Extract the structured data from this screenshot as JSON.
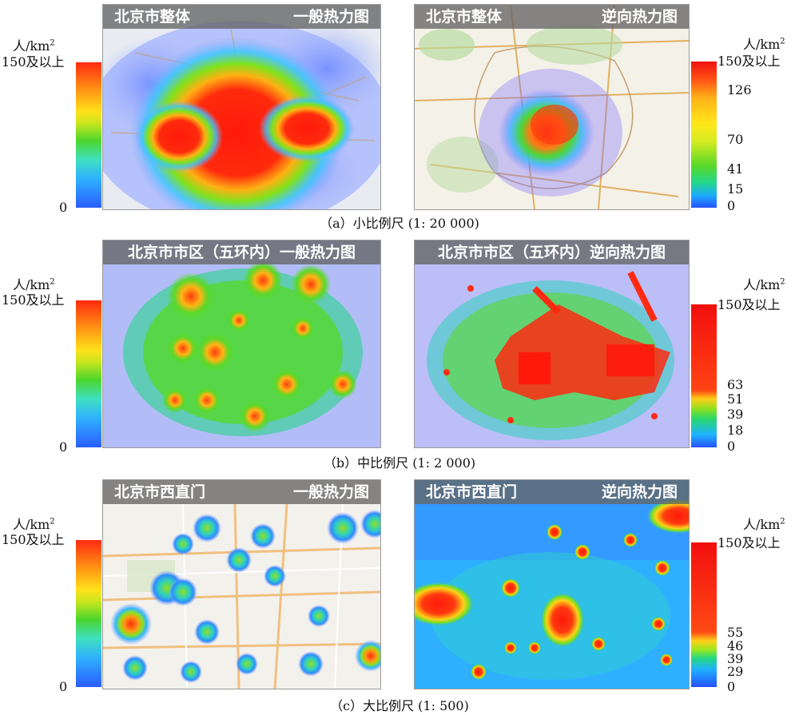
{
  "panels": [
    {
      "id": "a",
      "left": {
        "place": "北京市整体",
        "kind": "一般热力图"
      },
      "right": {
        "place": "北京市整体",
        "kind": "逆向热力图"
      },
      "left_legend": {
        "unit": "人/km",
        "unit_sup": "2",
        "max": "150及以上",
        "min": "0"
      },
      "right_legend": {
        "unit": "人/km",
        "unit_sup": "2",
        "max": "150及以上",
        "ticks": [
          "126",
          "70",
          "41",
          "15",
          "0"
        ]
      },
      "caption": "（a）小比例尺 (1: 20 000)"
    },
    {
      "id": "b",
      "left": {
        "place": "北京市市区（五环内）",
        "kind": "一般热力图"
      },
      "right": {
        "place": "北京市市区（五环内）",
        "kind": "逆向热力图"
      },
      "left_legend": {
        "unit": "人/km",
        "unit_sup": "2",
        "max": "150及以上",
        "min": "0"
      },
      "right_legend": {
        "unit": "人/km",
        "unit_sup": "2",
        "max": "150及以上",
        "ticks": [
          "63",
          "51",
          "39",
          "18",
          "0"
        ]
      },
      "caption": "（b）中比例尺 (1: 2 000)"
    },
    {
      "id": "c",
      "left": {
        "place": "北京市西直门",
        "kind": "一般热力图"
      },
      "right": {
        "place": "北京市西直门",
        "kind": "逆向热力图"
      },
      "left_legend": {
        "unit": "人/km",
        "unit_sup": "2",
        "max": "150及以上",
        "min": "0"
      },
      "right_legend": {
        "unit": "人/km",
        "unit_sup": "2",
        "max": "150及以上",
        "ticks": [
          "55",
          "46",
          "39",
          "29",
          "0"
        ]
      },
      "caption": "（c）大比例尺 (1: 500)"
    }
  ]
}
